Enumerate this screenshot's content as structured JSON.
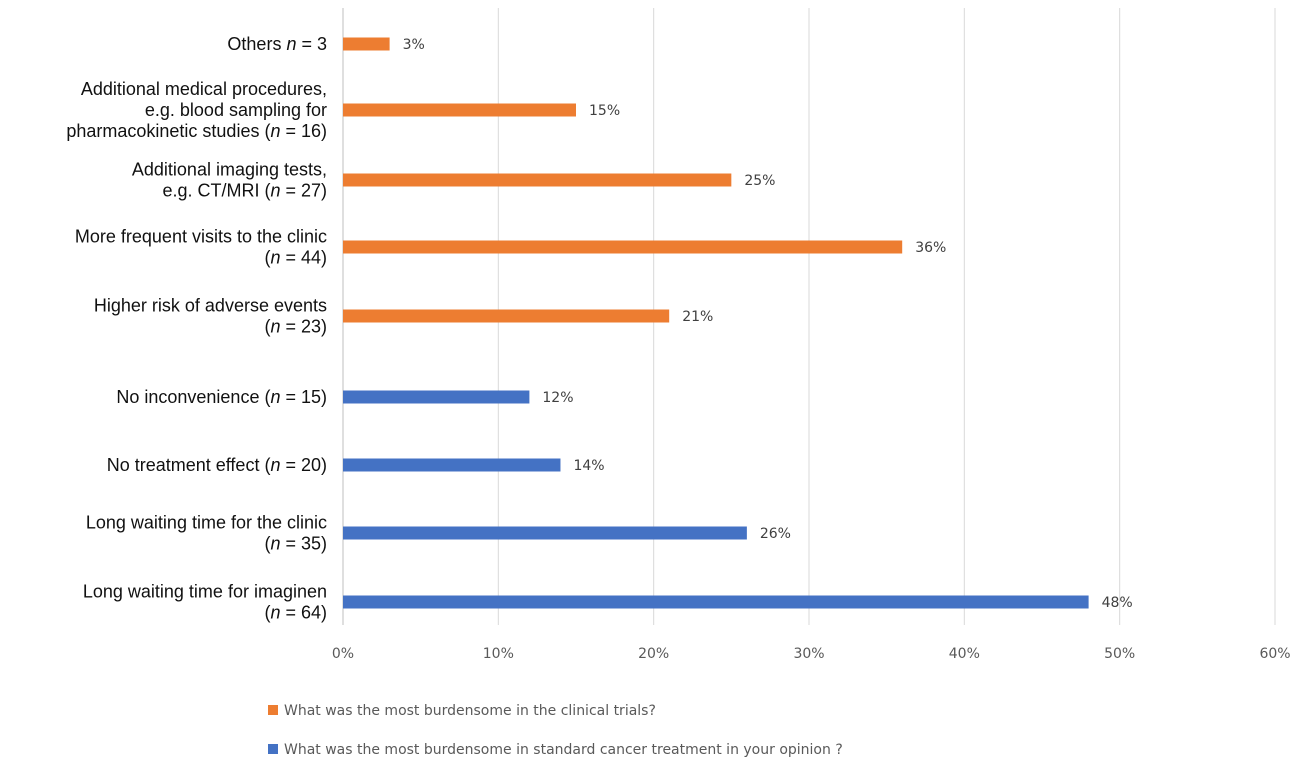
{
  "chart_data": {
    "type": "bar",
    "orientation": "horizontal",
    "categories": [
      {
        "lines": [
          [
            "Others ",
            {
              "i": "n"
            },
            " = 3"
          ]
        ]
      },
      {
        "lines": [
          [
            "Additional medical procedures,"
          ],
          [
            "e.g. blood sampling for"
          ],
          [
            "pharmacokinetic studies (",
            {
              "i": "n"
            },
            " = 16)"
          ]
        ]
      },
      {
        "lines": [
          [
            "Additional imaging tests,"
          ],
          [
            "e.g. CT/MRI (",
            {
              "i": "n"
            },
            " = 27)"
          ]
        ]
      },
      {
        "lines": [
          [
            "More frequent visits to the clinic"
          ],
          [
            "(",
            {
              "i": "n"
            },
            " = 44)"
          ]
        ]
      },
      {
        "lines": [
          [
            "Higher risk of adverse events"
          ],
          [
            "(",
            {
              "i": "n"
            },
            " = 23)"
          ]
        ]
      },
      {
        "lines": [
          [
            "No inconvenience (",
            {
              "i": "n"
            },
            " = 15)"
          ]
        ]
      },
      {
        "lines": [
          [
            "No treatment effect (",
            {
              "i": "n"
            },
            " = 20)"
          ]
        ]
      },
      {
        "lines": [
          [
            "Long waiting time for the clinic"
          ],
          [
            "(",
            {
              "i": "n"
            },
            " = 35)"
          ]
        ]
      },
      {
        "lines": [
          [
            "Long waiting time for imaginen"
          ],
          [
            "(",
            {
              "i": "n"
            },
            " = 64)"
          ]
        ]
      }
    ],
    "series": [
      {
        "name": "What was the most burdensome in the clinical trials?",
        "color": "#ED7D31",
        "values": [
          3,
          15,
          25,
          36,
          21,
          null,
          null,
          null,
          null
        ],
        "labels": [
          "3%",
          "15%",
          "25%",
          "36%",
          "21%",
          null,
          null,
          null,
          null
        ]
      },
      {
        "name": "What was the most burdensome in standard cancer treatment in your opinion ?",
        "color": "#4472C4",
        "values": [
          null,
          null,
          null,
          null,
          null,
          12,
          14,
          26,
          48
        ],
        "labels": [
          null,
          null,
          null,
          null,
          null,
          "12%",
          "14%",
          "26%",
          "48%"
        ]
      }
    ],
    "xlim": [
      0,
      60
    ],
    "x_ticks": [
      0,
      10,
      20,
      30,
      40,
      50,
      60
    ],
    "x_tick_labels": [
      "0%",
      "10%",
      "20%",
      "30%",
      "40%",
      "50%",
      "60%"
    ],
    "grid": "vertical",
    "legend_position": "bottom",
    "title": "",
    "xlabel": "",
    "ylabel": ""
  }
}
